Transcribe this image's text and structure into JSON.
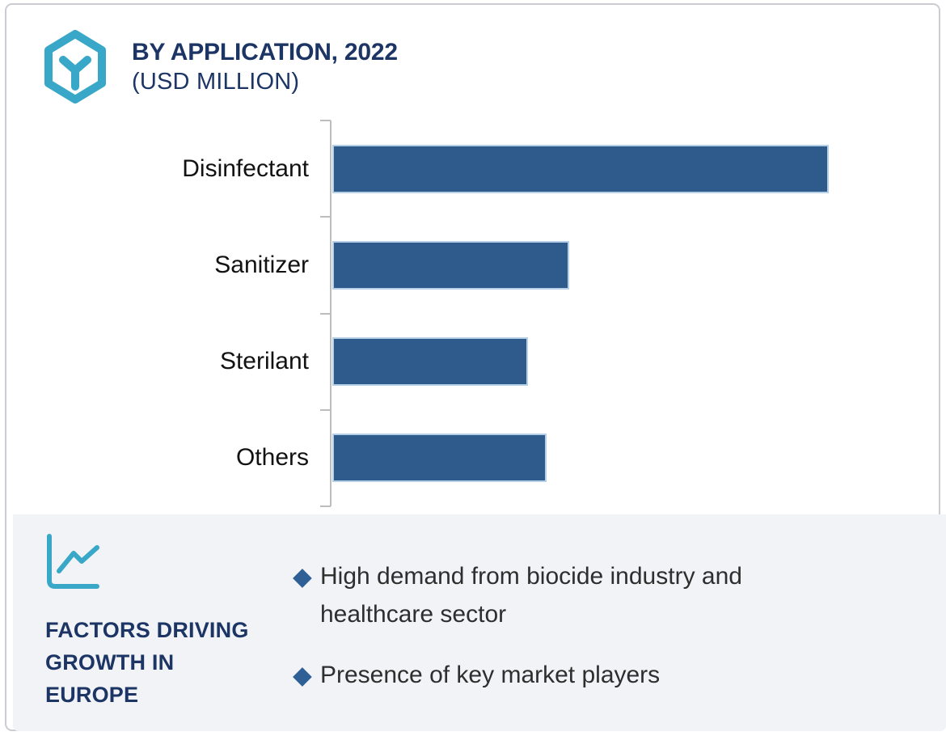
{
  "header": {
    "title": "BY APPLICATION, 2022",
    "subtitle": "(USD MILLION)",
    "logo_icon": "hexagon-cube-logo-icon",
    "text_color": "#1C3565",
    "logo_color": "#39A8C8"
  },
  "chart_data": {
    "type": "bar",
    "orientation": "horizontal",
    "title": "BY APPLICATION, 2022",
    "unit": "USD Million",
    "categories": [
      "Disinfectant",
      "Sanitizer",
      "Sterilant",
      "Others"
    ],
    "values_pct_of_max": [
      100,
      47.7,
      39.4,
      43.2
    ],
    "value_axis_labels_shown": false,
    "data_labels_shown": false,
    "gridlines": false,
    "legend": "none",
    "bar_color": "#2E5B8C",
    "bar_border_color": "#B4CFE6",
    "axis_color": "#BDBDBD",
    "category_label_color": "#121212"
  },
  "footer": {
    "icon": "line-chart-icon",
    "icon_color": "#39A8C8",
    "heading": "FACTORS DRIVING\nGROWTH IN\nEUROPE",
    "bullet_marker": "diamond",
    "bullet_marker_glyph": "◆",
    "bullet_color": "#2E6096",
    "bullets": [
      "High demand from biocide industry and healthcare sector",
      "Presence of key market players"
    ],
    "background": "#F2F3F7"
  }
}
